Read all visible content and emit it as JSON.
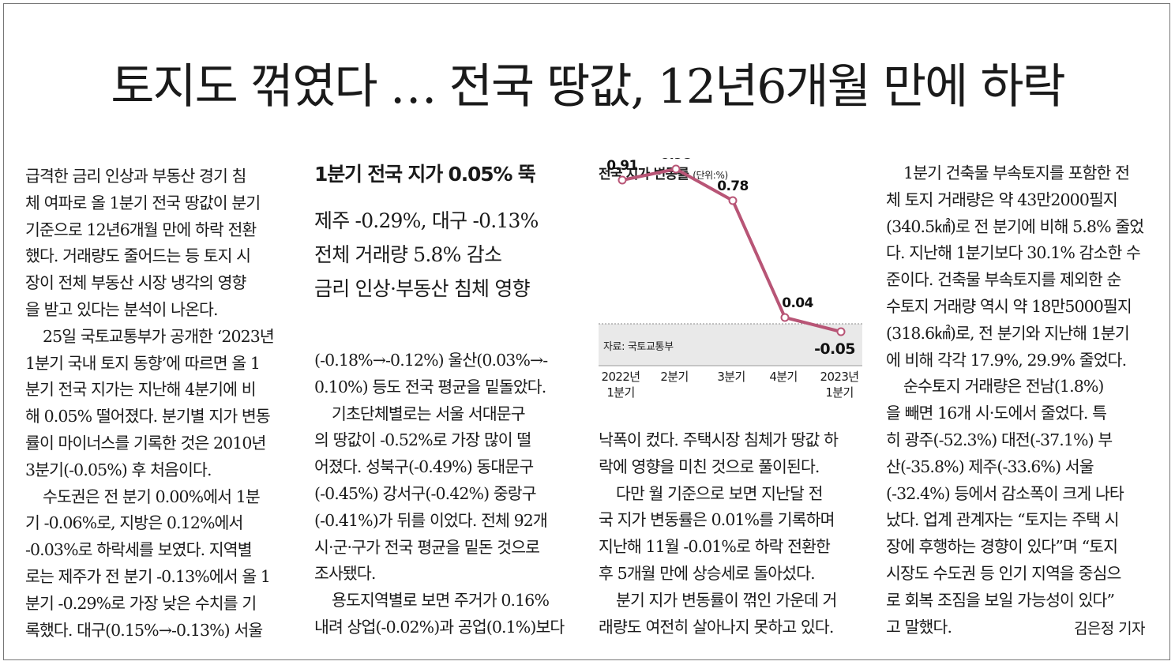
{
  "headline": "토지도 꺾였다 … 전국 땅값, 12년6개월 만에 하락",
  "subhead": {
    "main": "1분기 전국 지가 0.05% 뚝",
    "lines": [
      "제주 -0.29%, 대구 -0.13%",
      "전체 거래량 5.8% 감소",
      "금리 인상·부동산 침체 영향"
    ]
  },
  "columns": {
    "col1": [
      {
        "indent": false,
        "text": "급격한 금리 인상과 부동산 경기 침"
      },
      {
        "indent": false,
        "text": "체 여파로 올 1분기 전국 땅값이 분기"
      },
      {
        "indent": false,
        "text": "기준으로 12년6개월 만에 하락 전환"
      },
      {
        "indent": false,
        "text": "했다. 거래량도 줄어드는 등 토지 시"
      },
      {
        "indent": false,
        "text": "장이 전체 부동산 시장 냉각의 영향"
      },
      {
        "indent": false,
        "text": "을 받고 있다는 분석이 나온다."
      },
      {
        "indent": true,
        "text": "25일 국토교통부가 공개한 ‘2023년"
      },
      {
        "indent": false,
        "text": "1분기 국내 토지 동향’에 따르면 올 1"
      },
      {
        "indent": false,
        "text": "분기 전국 지가는 지난해 4분기에 비"
      },
      {
        "indent": false,
        "text": "해 0.05% 떨어졌다. 분기별 지가 변동"
      },
      {
        "indent": false,
        "text": "률이 마이너스를 기록한 것은 2010년"
      },
      {
        "indent": false,
        "text": "3분기(-0.05%) 후 처음이다."
      },
      {
        "indent": true,
        "text": "수도권은 전 분기 0.00%에서 1분"
      },
      {
        "indent": false,
        "text": "기 -0.06%로, 지방은 0.12%에서"
      },
      {
        "indent": false,
        "text": "-0.03%로 하락세를 보였다. 지역별"
      },
      {
        "indent": false,
        "text": "로는 제주가 전 분기 -0.13%에서 올 1"
      },
      {
        "indent": false,
        "text": "분기 -0.29%로 가장 낮은 수치를 기"
      },
      {
        "indent": false,
        "text": "록했다. 대구(0.15%→-0.13%) 서울"
      }
    ],
    "col2": [
      {
        "indent": false,
        "text": "(-0.18%→-0.12%) 울산(0.03%→-"
      },
      {
        "indent": false,
        "text": "0.10%) 등도 전국 평균을 밑돌았다."
      },
      {
        "indent": true,
        "text": "기초단체별로는 서울 서대문구"
      },
      {
        "indent": false,
        "text": "의 땅값이 -0.52%로 가장 많이 떨"
      },
      {
        "indent": false,
        "text": "어졌다. 성북구(-0.49%) 동대문구"
      },
      {
        "indent": false,
        "text": "(-0.45%) 강서구(-0.42%) 중랑구"
      },
      {
        "indent": false,
        "text": "(-0.41%)가 뒤를 이었다. 전체 92개"
      },
      {
        "indent": false,
        "text": "시·군·구가 전국 평균을 밑돈 것으로"
      },
      {
        "indent": false,
        "text": "조사됐다."
      },
      {
        "indent": true,
        "text": "용도지역별로 보면 주거가 0.16%"
      },
      {
        "indent": false,
        "text": "내려 상업(-0.02%)과 공업(0.1%)보다"
      }
    ],
    "col3": [
      {
        "indent": false,
        "text": "낙폭이 컸다. 주택시장 침체가 땅값 하"
      },
      {
        "indent": false,
        "text": "락에 영향을 미친 것으로 풀이된다."
      },
      {
        "indent": true,
        "text": "다만 월 기준으로 보면 지난달 전"
      },
      {
        "indent": false,
        "text": "국 지가 변동률은 0.01%를 기록하며"
      },
      {
        "indent": false,
        "text": "지난해 11월 -0.01%로 하락 전환한"
      },
      {
        "indent": false,
        "text": "후 5개월 만에 상승세로 돌아섰다."
      },
      {
        "indent": true,
        "text": "분기 지가 변동률이 꺾인 가운데 거"
      },
      {
        "indent": false,
        "text": "래량도 여전히 살아나지 못하고 있다."
      }
    ],
    "col4": [
      {
        "indent": true,
        "text": "1분기 건축물 부속토지를 포함한 전"
      },
      {
        "indent": false,
        "text": "체 토지 거래량은 약 43만2000필지"
      },
      {
        "indent": false,
        "text": "(340.5㎢)로 전 분기에 비해 5.8% 줄었"
      },
      {
        "indent": false,
        "text": "다. 지난해 1분기보다 30.1% 감소한 수"
      },
      {
        "indent": false,
        "text": "준이다. 건축물 부속토지를 제외한 순"
      },
      {
        "indent": false,
        "text": "수토지 거래량 역시 약 18만5000필지"
      },
      {
        "indent": false,
        "text": "(318.6㎢)로, 전 분기와 지난해 1분기"
      },
      {
        "indent": false,
        "text": "에 비해 각각 17.9%, 29.9% 줄었다."
      },
      {
        "indent": true,
        "text": "순수토지 거래량은 전남(1.8%)"
      },
      {
        "indent": false,
        "text": "을 빼면 16개 시·도에서 줄었다. 특"
      },
      {
        "indent": false,
        "text": "히 광주(-52.3%) 대전(-37.1%) 부"
      },
      {
        "indent": false,
        "text": "산(-35.8%) 제주(-33.6%) 서울"
      },
      {
        "indent": false,
        "text": "(-32.4%) 등에서 감소폭이 크게 나타"
      },
      {
        "indent": false,
        "text": "났다. 업계 관계자는 “토지는 주택 시"
      },
      {
        "indent": false,
        "text": "장에 후행하는 경향이 있다”며 “토지"
      },
      {
        "indent": false,
        "text": "시장도 수도권 등 인기 지역을 중심으"
      },
      {
        "indent": false,
        "text": "로 회복 조짐을 보일 가능성이 있다”"
      },
      {
        "indent": false,
        "text": "고 말했다."
      }
    ]
  },
  "byline": "김은정 기자",
  "chart_data": {
    "type": "line",
    "title": "전국 지가 변동률",
    "unit": "(단위:%)",
    "source": "자료: 국토교통부",
    "categories": [
      [
        "2022년",
        "1분기"
      ],
      [
        "2분기"
      ],
      [
        "3분기"
      ],
      [
        "4분기"
      ],
      [
        "2023년",
        "1분기"
      ]
    ],
    "values": [
      0.91,
      0.98,
      0.78,
      0.04,
      -0.05
    ],
    "value_labels": [
      "0.91",
      "0.98",
      "0.78",
      "0.04",
      "-0.05"
    ],
    "ylim": [
      -0.1,
      1.05
    ],
    "line_color": "#b85576",
    "negative_band_color": "#e9e9e9"
  }
}
